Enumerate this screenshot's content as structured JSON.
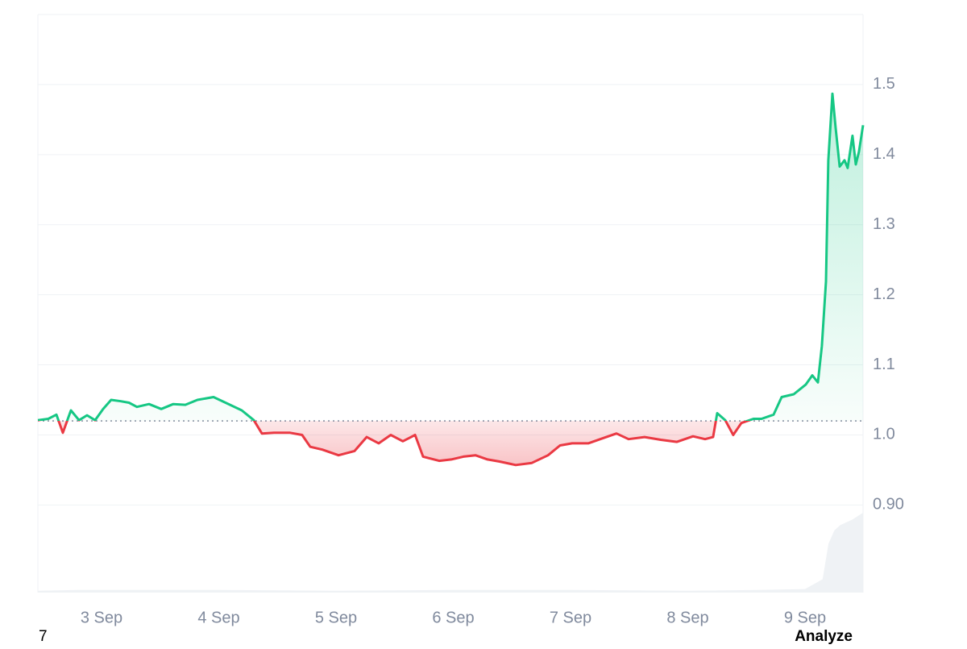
{
  "chart_data": {
    "type": "line",
    "x": [
      2.457,
      2.546,
      2.615,
      2.67,
      2.739,
      2.808,
      2.876,
      2.945,
      3.014,
      3.082,
      3.165,
      3.234,
      3.302,
      3.405,
      3.509,
      3.612,
      3.715,
      3.818,
      3.955,
      4.058,
      4.196,
      4.299,
      4.368,
      4.471,
      4.608,
      4.711,
      4.78,
      4.883,
      5.021,
      5.158,
      5.261,
      5.364,
      5.467,
      5.57,
      5.674,
      5.742,
      5.88,
      5.983,
      6.086,
      6.189,
      6.292,
      6.395,
      6.533,
      6.67,
      6.808,
      6.911,
      7.014,
      7.151,
      7.254,
      7.392,
      7.495,
      7.632,
      7.77,
      7.907,
      8.045,
      8.148,
      8.216,
      8.251,
      8.32,
      8.388,
      8.457,
      8.56,
      8.629,
      8.732,
      8.801,
      8.904,
      9.007,
      9.062,
      9.11,
      9.144,
      9.179,
      9.199,
      9.234,
      9.261,
      9.296,
      9.337,
      9.364,
      9.405,
      9.433,
      9.46,
      9.495
    ],
    "values": [
      1.021,
      1.023,
      1.029,
      1.003,
      1.035,
      1.021,
      1.028,
      1.021,
      1.037,
      1.05,
      1.048,
      1.046,
      1.04,
      1.044,
      1.037,
      1.044,
      1.043,
      1.05,
      1.054,
      1.046,
      1.035,
      1.021,
      1.002,
      1.003,
      1.003,
      1.0,
      0.983,
      0.979,
      0.971,
      0.977,
      0.997,
      0.988,
      1.0,
      0.991,
      1.0,
      0.969,
      0.963,
      0.965,
      0.969,
      0.971,
      0.965,
      0.962,
      0.957,
      0.96,
      0.971,
      0.985,
      0.988,
      0.988,
      0.994,
      1.002,
      0.994,
      0.997,
      0.993,
      0.99,
      0.998,
      0.994,
      0.997,
      1.031,
      1.021,
      1.0,
      1.017,
      1.023,
      1.023,
      1.029,
      1.054,
      1.058,
      1.072,
      1.085,
      1.075,
      1.127,
      1.219,
      1.392,
      1.487,
      1.438,
      1.383,
      1.392,
      1.381,
      1.427,
      1.386,
      1.404,
      1.442
    ],
    "baseline": 1.02,
    "color_up": "#16c784",
    "color_down": "#ea3943",
    "xlim": [
      2.457,
      9.495
    ],
    "ylim": [
      0.775,
      1.6
    ],
    "xticks": [
      {
        "value": 3,
        "label": "3 Sep"
      },
      {
        "value": 4,
        "label": "4 Sep"
      },
      {
        "value": 5,
        "label": "5 Sep"
      },
      {
        "value": 6,
        "label": "6 Sep"
      },
      {
        "value": 7,
        "label": "7 Sep"
      },
      {
        "value": 8,
        "label": "8 Sep"
      },
      {
        "value": 9,
        "label": "9 Sep"
      }
    ],
    "yticks": [
      {
        "value": 0.9,
        "label": "0.90"
      },
      {
        "value": 1.0,
        "label": "1.0"
      },
      1.1,
      1.2,
      1.3,
      1.4,
      1.5
    ],
    "grid": true,
    "volume": {
      "x": [
        2.457,
        2.8,
        3.2,
        4.0,
        5.0,
        6.0,
        7.0,
        8.0,
        8.6,
        9.0,
        9.15,
        9.2,
        9.25,
        9.3,
        9.4,
        9.495
      ],
      "values": [
        2,
        3,
        3,
        3,
        2,
        3,
        3,
        2,
        3,
        4,
        15,
        55,
        70,
        76,
        82,
        90
      ],
      "lim": [
        0,
        100
      ]
    }
  },
  "footer_left": "7",
  "footer_right": "Analyze"
}
